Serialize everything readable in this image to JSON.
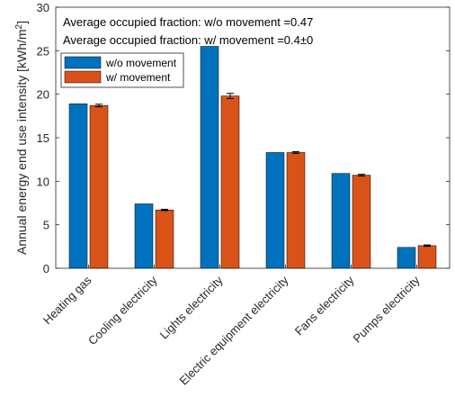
{
  "chart_data": {
    "type": "bar",
    "categories": [
      "Heating gas",
      "Cooling electricity",
      "Lights electricity",
      "Electric equipment electricity",
      "Fans electricity",
      "Pumps electricity"
    ],
    "series": [
      {
        "name": "w/o movement",
        "color": "#0072BD",
        "values": [
          18.9,
          7.4,
          25.5,
          13.3,
          10.9,
          2.4
        ]
      },
      {
        "name": "w/ movement",
        "color": "#D95319",
        "values": [
          18.7,
          6.7,
          19.8,
          13.3,
          10.7,
          2.6
        ],
        "error": [
          0.15,
          0.08,
          0.3,
          0.1,
          0.1,
          0.08
        ]
      }
    ],
    "ylabel_main": "Annual energy end use intensity [kWh/m",
    "ylabel_sup": "2",
    "ylabel_end": "]",
    "xlabel": "",
    "ylim": [
      0,
      30
    ],
    "yticks": [
      "0",
      "5",
      "10",
      "15",
      "20",
      "25",
      "30"
    ],
    "annotations": [
      "Average occupied fraction: w/o movement =0.47",
      "Average occupied fraction: w/ movement =0.4±0"
    ],
    "legend": {
      "position": "top-left",
      "entries": [
        "w/o movement",
        "w/ movement"
      ]
    },
    "grid": false
  }
}
